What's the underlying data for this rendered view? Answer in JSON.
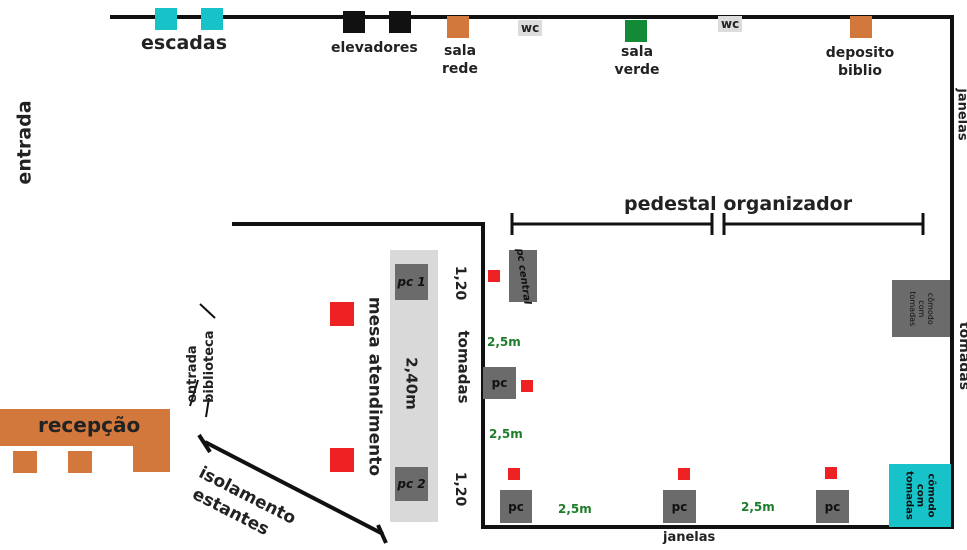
{
  "labels": {
    "escadas": "escadas",
    "elevadores": "elevadores",
    "sala_rede": [
      "sala",
      "rede"
    ],
    "wc1": "wc",
    "sala_verde": [
      "sala",
      "verde"
    ],
    "wc2": "wc",
    "deposito_biblio": [
      "deposito",
      "biblio"
    ],
    "janelas_right": "janelas",
    "entrada": "entrada",
    "pedestal_organizador": "pedestal organizador",
    "pc_central": "pc central",
    "pc1": "pc 1",
    "pc2": "pc 2",
    "mesa_atendimento": "mesa atendimento",
    "dim_240": "2,40m",
    "dim_120_top": "1,20",
    "dim_120_bottom": "1,20",
    "tomadas_left": "tomadas",
    "tomadas_right": "tomadas",
    "gap_25_a": "2,5m",
    "gap_25_b": "2,5m",
    "gap_25_c": "2,5m",
    "gap_25_d": "2,5m",
    "pc": "pc",
    "comodo_tomadas": [
      "cômodo",
      "com",
      "tomadas"
    ],
    "entrada_biblioteca": [
      "entrada",
      "biblioteca"
    ],
    "recepcao": "recepção",
    "isolamento_estantes": [
      "isolamento",
      "estantes"
    ],
    "janelas_bottom": "janelas"
  },
  "colors": {
    "wall": "#111111",
    "escadas": "#17c2c9",
    "elevadores": "#111111",
    "sala_rede": "#d2783c",
    "wc": "#dcdcdc",
    "sala_verde": "#138a36",
    "deposito": "#d2783c",
    "pc": "#6b6b6b",
    "mesa": "#d9d9d9",
    "chair_red": "#ee2222",
    "recepcao": "#d2783c",
    "comodo_cyan": "#17c2c9",
    "green_text": "#1e7d2a"
  }
}
